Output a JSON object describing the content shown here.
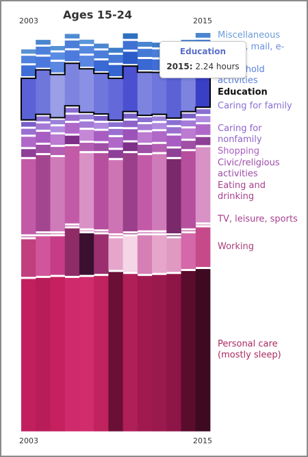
{
  "chart_data": {
    "type": "area",
    "title": "Ages 15-24",
    "x": [
      2003,
      2004,
      2005,
      2006,
      2007,
      2008,
      2009,
      2010,
      2011,
      2012,
      2013,
      2014,
      2015
    ],
    "x_tick_labels": [
      "2003",
      "2015"
    ],
    "highlighted_series": "Education",
    "series": [
      {
        "name": "Miscellaneous",
        "values": [
          0.22,
          0.24,
          0.22,
          0.23,
          0.22,
          0.24,
          0.25,
          0.28,
          0.25,
          0.24,
          0.26,
          0.25,
          0.24
        ],
        "colors": [
          "#5a93d4",
          "#4a86cf",
          "#5592d6",
          "#4f8bd3",
          "#5a95d8",
          "#4a86cf",
          "#3e7dca",
          "#2f6fbf",
          "#4a86cf",
          "#3e7dca",
          "#3474c4",
          "#4a86cf",
          "#4a86cf"
        ]
      },
      {
        "name": "Phone, mail, e-mail",
        "values": [
          0.38,
          0.4,
          0.37,
          0.39,
          0.38,
          0.4,
          0.41,
          0.44,
          0.41,
          0.4,
          0.42,
          0.41,
          0.4
        ],
        "colors": [
          "#4e82de",
          "#4c80dc",
          "#5a8ce3",
          "#4a7ed9",
          "#5588df",
          "#4a7ed9",
          "#4679d6",
          "#3f72d2",
          "#4679d6",
          "#4a7ed9",
          "#4e82de",
          "#4a7ed9",
          "#4a7ed9"
        ]
      },
      {
        "name": "Household activities",
        "values": [
          0.55,
          0.56,
          0.54,
          0.55,
          0.56,
          0.55,
          0.57,
          0.62,
          0.56,
          0.55,
          0.57,
          0.55,
          0.56
        ],
        "colors": [
          "#3f6fd6",
          "#4a78dc",
          "#5b87e3",
          "#4d7bdd",
          "#5a86e2",
          "#3a69d3",
          "#3565d1",
          "#2c5cc9",
          "#3a69d3",
          "#3f6fd6",
          "#4a78dc",
          "#4572da",
          "#3f6fd6"
        ]
      },
      {
        "name": "Education",
        "values": [
          2.1,
          2.25,
          2.18,
          2.15,
          2.2,
          2.05,
          2.12,
          2.3,
          2.18,
          2.12,
          2.2,
          2.1,
          2.24
        ],
        "colors": [
          "#5a62d6",
          "#6f76dc",
          "#9a9fe6",
          "#7d84e0",
          "#8a90e4",
          "#6f76dc",
          "#6369d9",
          "#4a50cf",
          "#7d84e0",
          "#6f76dc",
          "#5a62d6",
          "#7d84e0",
          "#3a40c6"
        ]
      },
      {
        "name": "Caring for family",
        "values": [
          0.24,
          0.25,
          0.23,
          0.24,
          0.25,
          0.24,
          0.23,
          0.25,
          0.24,
          0.23,
          0.25,
          0.24,
          0.24
        ],
        "colors": [
          "#7a5fc8",
          "#8a6fd2",
          "#9a82da",
          "#8a6fd2",
          "#9a82da",
          "#7a5fc8",
          "#8a6fd2",
          "#7a5fc8",
          "#8a6fd2",
          "#9a82da",
          "#8a6fd2",
          "#7a5fc8",
          "#8a6fd2"
        ]
      },
      {
        "name": "Caring for nonfamily",
        "values": [
          0.3,
          0.32,
          0.3,
          0.31,
          0.32,
          0.3,
          0.31,
          0.33,
          0.3,
          0.31,
          0.32,
          0.3,
          0.31
        ],
        "colors": [
          "#9a6fd0",
          "#a47ad6",
          "#b18ae0",
          "#9a6fd0",
          "#a47ad6",
          "#b18ae0",
          "#9a6fd0",
          "#8e62c8",
          "#a47ad6",
          "#b18ae0",
          "#9a6fd0",
          "#a47ad6",
          "#b18ae0"
        ]
      },
      {
        "name": "Shopping",
        "values": [
          0.52,
          0.55,
          0.53,
          0.54,
          0.55,
          0.52,
          0.54,
          0.56,
          0.53,
          0.54,
          0.55,
          0.52,
          0.54
        ],
        "colors": [
          "#b068c8",
          "#a85dc2",
          "#bc7ad0",
          "#b068c8",
          "#c488d6",
          "#a85dc2",
          "#b068c8",
          "#9c52b8",
          "#bc7ad0",
          "#b068c8",
          "#a85dc2",
          "#bc7ad0",
          "#b068c8"
        ]
      },
      {
        "name": "Civic/religious activities",
        "values": [
          0.4,
          0.42,
          0.41,
          0.43,
          0.42,
          0.4,
          0.41,
          0.44,
          0.42,
          0.41,
          0.43,
          0.42,
          0.41
        ],
        "colors": [
          "#8e3f96",
          "#a04fa6",
          "#b45fb2",
          "#7e3088",
          "#b45fb2",
          "#a04fa6",
          "#8e3f96",
          "#7e3088",
          "#a04fa6",
          "#b45fb2",
          "#8e3f96",
          "#a04fa6",
          "#8e3f96"
        ]
      },
      {
        "name": "Eating and drinking",
        "values": [
          3.8,
          3.85,
          3.75,
          3.9,
          3.8,
          3.85,
          3.7,
          3.95,
          3.8,
          3.85,
          3.75,
          3.9,
          3.8
        ],
        "colors": [
          "#c25aa8",
          "#a3468f",
          "#cf7bb9",
          "#c25aa8",
          "#d992c6",
          "#b54f9e",
          "#ce74b4",
          "#9a3f89",
          "#c25aa8",
          "#cf7bb9",
          "#7a2a6a",
          "#b54f9e",
          "#d992c6"
        ]
      },
      {
        "name": "TV, leisure, sports",
        "values": [
          0.02,
          0.02,
          0.02,
          0.02,
          0.02,
          0.02,
          0.02,
          0.02,
          0.02,
          0.02,
          0.02,
          0.02,
          0.02
        ],
        "colors": [
          "#c25aa8",
          "#a3468f",
          "#cf7bb9",
          "#c25aa8",
          "#d992c6",
          "#b54f9e",
          "#ce74b4",
          "#9a3f89",
          "#c25aa8",
          "#cf7bb9",
          "#7a2a6a",
          "#b54f9e",
          "#d992c6"
        ]
      },
      {
        "name": "Working",
        "values": [
          1.9,
          2.0,
          1.95,
          2.4,
          2.1,
          2.0,
          1.6,
          1.8,
          1.95,
          1.9,
          1.7,
          1.8,
          2.0
        ],
        "colors": [
          "#c0407e",
          "#d0559a",
          "#c63c86",
          "#8f2c68",
          "#3a0f30",
          "#9a2e6e",
          "#e6a6cc",
          "#f4d6e6",
          "#d57fb5",
          "#e6a6cc",
          "#e09ac2",
          "#d468a8",
          "#c64a8a"
        ]
      },
      {
        "name": "Personal care (mostly sleep)",
        "values": [
          7.7,
          7.75,
          7.8,
          7.75,
          7.8,
          7.85,
          8.05,
          7.95,
          7.85,
          7.9,
          7.95,
          8.1,
          8.2
        ],
        "colors": [
          "#c21f5f",
          "#b81d5a",
          "#c6205e",
          "#cf2a6b",
          "#d12c6c",
          "#c0235e",
          "#6a0f35",
          "#b01f58",
          "#a01a50",
          "#9a1a4e",
          "#8e1548",
          "#5a0c2c",
          "#3e0a22"
        ]
      }
    ],
    "labels": [
      {
        "text": "Miscellaneous",
        "series": "Miscellaneous",
        "color": "#6a9bd8"
      },
      {
        "text": "Phone, mail, e-mail",
        "series": "Phone, mail, e-mail",
        "color": "#6a8fe0"
      },
      {
        "text": "Household activities",
        "series": "Household activities",
        "color": "#5a7fdc"
      },
      {
        "text": "Education",
        "series": "Education",
        "color": "#111111"
      },
      {
        "text": "Caring for family",
        "series": "Caring for family",
        "color": "#8a6fd2"
      },
      {
        "text": "Caring for nonfamily",
        "series": "Caring for nonfamily",
        "color": "#8e62c8"
      },
      {
        "text": "Shopping",
        "series": "Shopping",
        "color": "#a85dc2"
      },
      {
        "text": "Civic/religious activities",
        "series": "Civic/religious activities",
        "color": "#9c4aa6"
      },
      {
        "text": "Eating and drinking",
        "series": "Eating and drinking",
        "color": "#a8408f"
      },
      {
        "text": "TV, leisure, sports",
        "series": "TV, leisure, sports",
        "color": "#a8408f"
      },
      {
        "text": "Working",
        "series": "Working",
        "color": "#a8407a"
      },
      {
        "text": "Personal care (mostly sleep)",
        "series": "Personal care (mostly sleep)",
        "color": "#a82a5e"
      }
    ],
    "tooltip": {
      "title": "Education",
      "year": "2015:",
      "value": "2.24 hours"
    },
    "legend": "none",
    "grid": false
  }
}
